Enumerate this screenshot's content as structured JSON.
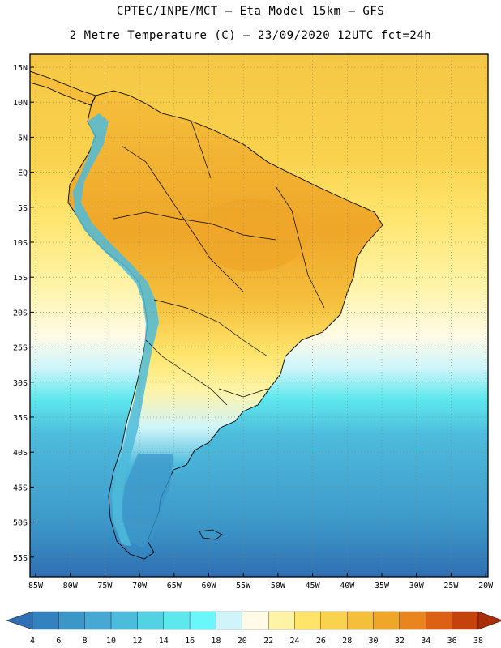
{
  "header": {
    "line1": "CPTEC/INPE/MCT –  Eta Model 15km – GFS",
    "line2": "2 Metre Temperature (C) – 23/09/2020 12UTC fct=24h"
  },
  "axes": {
    "lat_labels": [
      "15N",
      "10N",
      "5N",
      "EQ",
      "5S",
      "10S",
      "15S",
      "20S",
      "25S",
      "30S",
      "35S",
      "40S",
      "45S",
      "50S",
      "55S"
    ],
    "lon_labels": [
      "85W",
      "80W",
      "75W",
      "70W",
      "65W",
      "60W",
      "55W",
      "50W",
      "45W",
      "40W",
      "35W",
      "30W",
      "25W",
      "20W"
    ]
  },
  "colorbar": {
    "labels": [
      "4",
      "6",
      "8",
      "10",
      "12",
      "14",
      "16",
      "18",
      "20",
      "22",
      "24",
      "26",
      "28",
      "30",
      "32",
      "34",
      "36",
      "38"
    ],
    "colors": [
      "#2f6fb3",
      "#3282bf",
      "#3c97c9",
      "#45a9d3",
      "#4dbbdc",
      "#55d1e4",
      "#5ee8ee",
      "#6af6fb",
      "#cff5fb",
      "#fffbe6",
      "#fff3a6",
      "#ffe46a",
      "#f9d24e",
      "#f5bf3c",
      "#efa629",
      "#e8851e",
      "#db6114",
      "#c4430d",
      "#a82e08"
    ]
  },
  "map_colors": {
    "ocean_north": "#f5c744",
    "ocean_equator": "#ffe46a",
    "ocean_mid": "#fff3a6",
    "ocean_south_1": "#cff5fb",
    "ocean_south_2": "#5ee8ee",
    "ocean_south_3": "#4dbbdc",
    "ocean_south_4": "#3c97c9",
    "ocean_south_5": "#2f6fb3",
    "land_warm": "#f5bf3c",
    "land_hot": "#efa629",
    "andes": "#4dbbdc",
    "border": "#000000",
    "grid": "#9a8f6a"
  }
}
